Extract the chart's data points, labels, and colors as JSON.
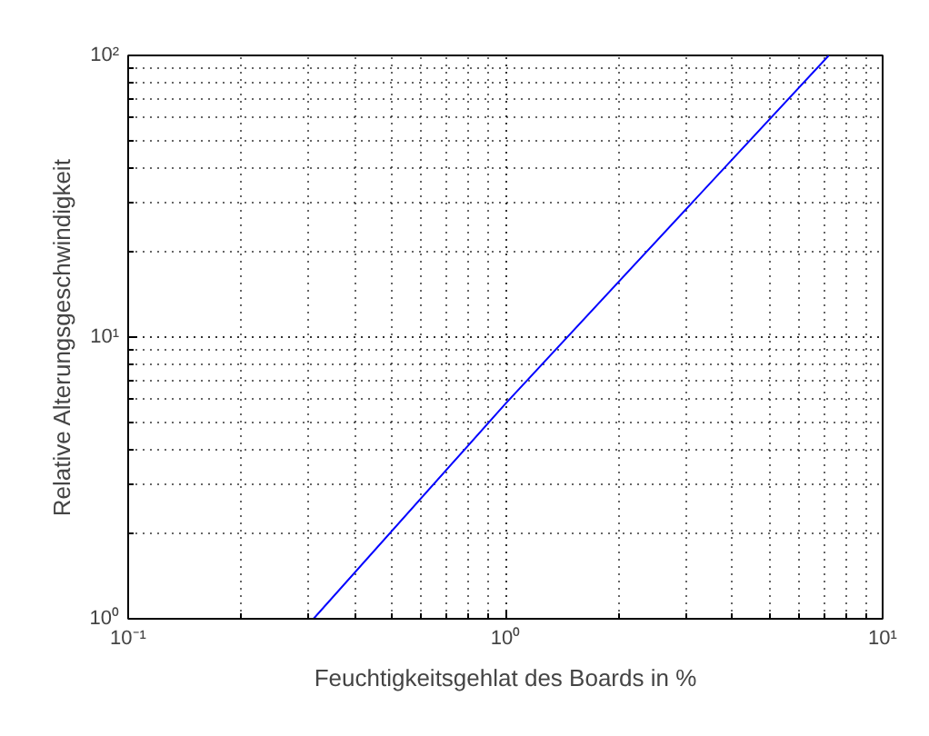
{
  "chart_data": {
    "type": "line",
    "xlabel": "Feuchtigkeitsgehlat des Boards in %",
    "ylabel": "Relative Alterungsgeschwindigkeit",
    "log": "xy",
    "grid": true,
    "line_style": "solid",
    "marker": "none",
    "xlim": [
      0.1,
      10
    ],
    "ylim": [
      1,
      100
    ],
    "xticks": [
      {
        "value": 0.1,
        "label": "10⁻¹"
      },
      {
        "value": 1,
        "label": "10⁰"
      },
      {
        "value": 10,
        "label": "10¹"
      }
    ],
    "yticks": [
      {
        "value": 1,
        "label": "10⁰"
      },
      {
        "value": 10,
        "label": "10¹"
      },
      {
        "value": 100,
        "label": "10²"
      }
    ],
    "series": [
      {
        "color": "#0000ff",
        "x": [
          0.31,
          1,
          7.2
        ],
        "values": [
          1,
          5.8,
          100
        ]
      }
    ]
  }
}
